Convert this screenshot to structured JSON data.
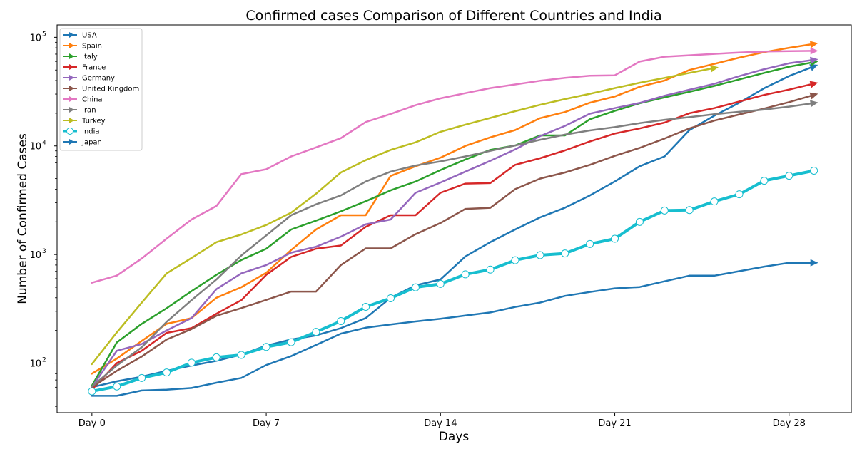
{
  "chart_data": {
    "type": "line",
    "title": "Confirmed cases Comparison of Different Countries and India",
    "xlabel": "Days",
    "ylabel": "Number of Confirmed Cases",
    "yscale": "log",
    "xlim": [
      -1.4,
      30.5
    ],
    "ylim": [
      35,
      130000
    ],
    "xticks": [
      {
        "value": 0,
        "label": "Day 0"
      },
      {
        "value": 7,
        "label": "Day 7"
      },
      {
        "value": 14,
        "label": "Day 14"
      },
      {
        "value": 21,
        "label": "Day 21"
      },
      {
        "value": 28,
        "label": "Day 28"
      }
    ],
    "yticks": [
      {
        "value": 100,
        "base": "10",
        "exp": "2"
      },
      {
        "value": 1000,
        "base": "10",
        "exp": "3"
      },
      {
        "value": 10000,
        "base": "10",
        "exp": "4"
      },
      {
        "value": 100000,
        "base": "10",
        "exp": "5"
      }
    ],
    "grid": false,
    "legend_position": "top-left",
    "series": [
      {
        "name": "USA",
        "color": "#1f77b4",
        "marker": "arrow",
        "x": [
          0,
          1,
          2,
          3,
          4,
          5,
          6,
          7,
          8,
          9,
          10,
          11,
          12,
          13,
          14,
          15,
          16,
          17,
          18,
          19,
          20,
          21,
          22,
          23,
          24,
          25,
          26,
          27,
          28,
          29
        ],
        "values": [
          60,
          68,
          75,
          85,
          95,
          105,
          120,
          145,
          165,
          180,
          210,
          260,
          400,
          520,
          590,
          960,
          1300,
          1700,
          2200,
          2700,
          3500,
          4700,
          6500,
          8000,
          14000,
          19000,
          25000,
          34000,
          44000,
          54000
        ]
      },
      {
        "name": "Spain",
        "color": "#ff7f0e",
        "marker": "arrow",
        "x": [
          0,
          1,
          2,
          3,
          4,
          5,
          6,
          7,
          8,
          9,
          10,
          11,
          12,
          13,
          14,
          15,
          16,
          17,
          18,
          19,
          20,
          21,
          22,
          23,
          24,
          25,
          26,
          27,
          28,
          29
        ],
        "values": [
          80,
          110,
          160,
          230,
          260,
          400,
          500,
          680,
          1100,
          1700,
          2300,
          2300,
          5300,
          6500,
          7800,
          10000,
          12000,
          14000,
          18000,
          20500,
          25000,
          28500,
          35000,
          40000,
          50000,
          57000,
          65000,
          73000,
          80000,
          87000
        ]
      },
      {
        "name": "Italy",
        "color": "#2ca02c",
        "marker": "arrow",
        "x": [
          0,
          1,
          2,
          3,
          4,
          5,
          6,
          7,
          8,
          9,
          10,
          11,
          12,
          13,
          14,
          15,
          16,
          17,
          18,
          19,
          20,
          21,
          22,
          23,
          24,
          25,
          26,
          27,
          28,
          29
        ],
        "values": [
          62,
          155,
          230,
          320,
          460,
          650,
          890,
          1130,
          1700,
          2050,
          2500,
          3100,
          3900,
          4700,
          6000,
          7500,
          9200,
          10100,
          12500,
          12500,
          17600,
          21000,
          24700,
          28000,
          31500,
          35700,
          41000,
          47000,
          53600,
          59100
        ]
      },
      {
        "name": "France",
        "color": "#d62728",
        "marker": "arrow",
        "x": [
          0,
          1,
          2,
          3,
          4,
          5,
          6,
          7,
          8,
          9,
          10,
          11,
          12,
          13,
          14,
          15,
          16,
          17,
          18,
          19,
          20,
          21,
          22,
          23,
          24,
          25,
          26,
          27,
          28,
          29
        ],
        "values": [
          57,
          100,
          130,
          190,
          210,
          285,
          380,
          650,
          950,
          1130,
          1210,
          1800,
          2300,
          2300,
          3700,
          4500,
          4550,
          6700,
          7700,
          9100,
          11000,
          13000,
          14500,
          16400,
          20000,
          22300,
          25600,
          29500,
          33000,
          37500
        ]
      },
      {
        "name": "Germany",
        "color": "#9467bd",
        "marker": "arrow",
        "x": [
          0,
          1,
          2,
          3,
          4,
          5,
          6,
          7,
          8,
          9,
          10,
          11,
          12,
          13,
          14,
          15,
          16,
          17,
          18,
          19,
          20,
          21,
          22,
          23,
          24,
          25,
          26,
          27,
          28,
          29
        ],
        "values": [
          60,
          130,
          150,
          200,
          260,
          480,
          670,
          800,
          1040,
          1180,
          1460,
          1900,
          2100,
          3700,
          4600,
          5800,
          7300,
          9300,
          12300,
          15300,
          19800,
          22300,
          24900,
          29000,
          32900,
          37300,
          43900,
          50900,
          57700,
          62000
        ]
      },
      {
        "name": "United Kingdom",
        "color": "#8c564b",
        "marker": "arrow",
        "x": [
          0,
          1,
          2,
          3,
          4,
          5,
          6,
          7,
          8,
          9,
          10,
          11,
          12,
          13,
          14,
          15,
          16,
          17,
          18,
          19,
          20,
          21,
          22,
          23,
          24,
          25,
          26,
          27,
          28,
          29
        ],
        "values": [
          60,
          85,
          115,
          165,
          206,
          273,
          321,
          382,
          456,
          456,
          800,
          1140,
          1140,
          1540,
          1950,
          2630,
          2690,
          4000,
          5000,
          5700,
          6700,
          8100,
          9600,
          11700,
          14500,
          17100,
          19500,
          22100,
          25300,
          29500
        ]
      },
      {
        "name": "China",
        "color": "#e377c2",
        "marker": "arrow",
        "x": [
          0,
          1,
          2,
          3,
          4,
          5,
          6,
          7,
          8,
          9,
          10,
          11,
          12,
          13,
          14,
          15,
          16,
          17,
          18,
          19,
          20,
          21,
          22,
          23,
          24,
          25,
          26,
          27,
          28,
          29
        ],
        "values": [
          550,
          640,
          920,
          1400,
          2100,
          2800,
          5500,
          6100,
          8000,
          9700,
          11800,
          16600,
          19700,
          23700,
          27400,
          30600,
          34100,
          36800,
          39800,
          42300,
          44300,
          44700,
          59800,
          66300,
          68300,
          70400,
          72400,
          74100,
          74600,
          75000
        ]
      },
      {
        "name": "Iran",
        "color": "#7f7f7f",
        "marker": "arrow",
        "x": [
          0,
          1,
          2,
          3,
          4,
          5,
          6,
          7,
          8,
          9,
          10,
          11,
          12,
          13,
          14,
          15,
          16,
          17,
          18,
          19,
          20,
          21,
          22,
          23,
          24,
          25,
          26,
          27,
          28,
          29
        ],
        "values": [
          61,
          95,
          140,
          240,
          380,
          590,
          980,
          1500,
          2300,
          2900,
          3500,
          4700,
          5800,
          6600,
          7200,
          8000,
          9000,
          10100,
          11400,
          12700,
          13900,
          14900,
          16200,
          17400,
          18400,
          19600,
          20600,
          21600,
          23000,
          24800
        ]
      },
      {
        "name": "Turkey",
        "color": "#bcbd22",
        "marker": "arrow",
        "x": [
          0,
          1,
          2,
          3,
          4,
          5,
          6,
          7,
          8,
          9,
          10,
          11,
          12,
          13,
          14,
          15,
          16,
          17,
          18,
          19,
          20,
          21,
          22,
          23,
          24,
          25
        ],
        "values": [
          98,
          192,
          360,
          670,
          930,
          1300,
          1530,
          1870,
          2430,
          3630,
          5700,
          7400,
          9200,
          10800,
          13500,
          15700,
          18100,
          20900,
          23900,
          27000,
          30200,
          34100,
          38200,
          42300,
          47000,
          52200
        ]
      },
      {
        "name": "India",
        "color": "#17becf",
        "marker": "circle",
        "x": [
          0,
          1,
          2,
          3,
          4,
          5,
          6,
          7,
          8,
          9,
          10,
          11,
          12,
          13,
          14,
          15,
          16,
          17,
          18,
          19,
          20,
          21,
          22,
          23,
          24,
          25,
          26,
          27,
          28,
          29
        ],
        "values": [
          55,
          61,
          73,
          82,
          101,
          113,
          119,
          141,
          156,
          194,
          244,
          330,
          396,
          499,
          536,
          657,
          727,
          887,
          987,
          1024,
          1251,
          1397,
          1998,
          2543,
          2567,
          3082,
          3588,
          4778,
          5311,
          5916
        ]
      },
      {
        "name": "Japan",
        "color": "#1f77b4",
        "marker": "arrow",
        "x": [
          0,
          1,
          2,
          3,
          4,
          5,
          6,
          7,
          8,
          9,
          10,
          11,
          12,
          13,
          14,
          15,
          16,
          17,
          18,
          19,
          20,
          21,
          22,
          23,
          24,
          25,
          26,
          27,
          28,
          29
        ],
        "values": [
          50,
          50,
          56,
          57,
          59,
          66,
          73,
          96,
          116,
          147,
          187,
          212,
          227,
          242,
          256,
          274,
          293,
          329,
          361,
          416,
          452,
          488,
          502,
          567,
          639,
          639,
          703,
          774,
          840,
          840
        ]
      }
    ]
  }
}
